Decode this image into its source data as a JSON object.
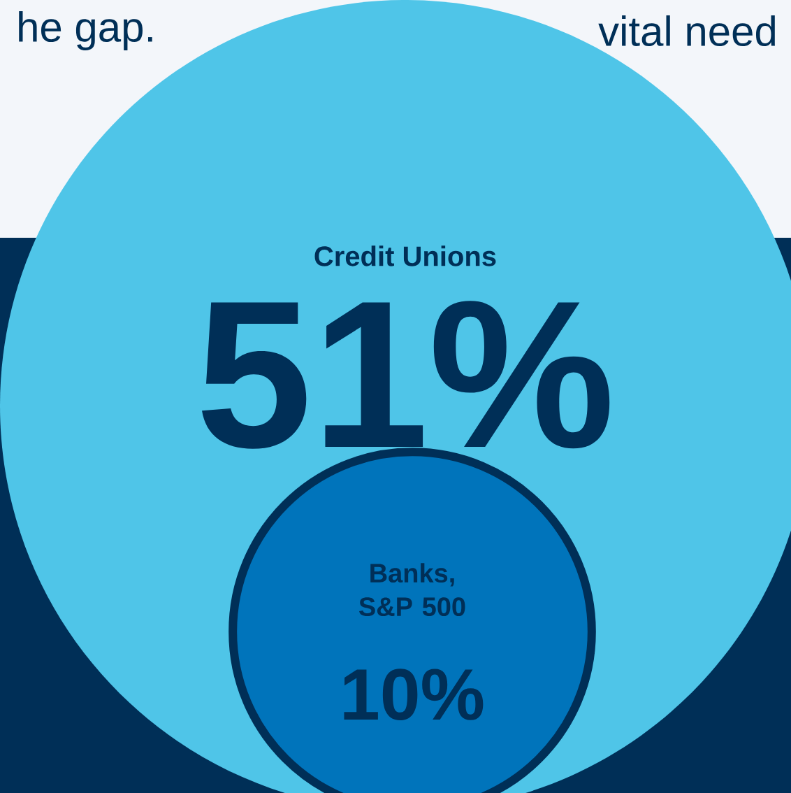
{
  "chart_data": {
    "type": "other",
    "categories": [
      "Credit Unions",
      "Banks, S&P 500"
    ],
    "values": [
      51,
      10
    ],
    "value_labels": [
      "51%",
      "10%"
    ],
    "colors": [
      "#4fc5e8",
      "#0074bb"
    ],
    "annotations": [
      "he gap.",
      "vital need"
    ]
  }
}
